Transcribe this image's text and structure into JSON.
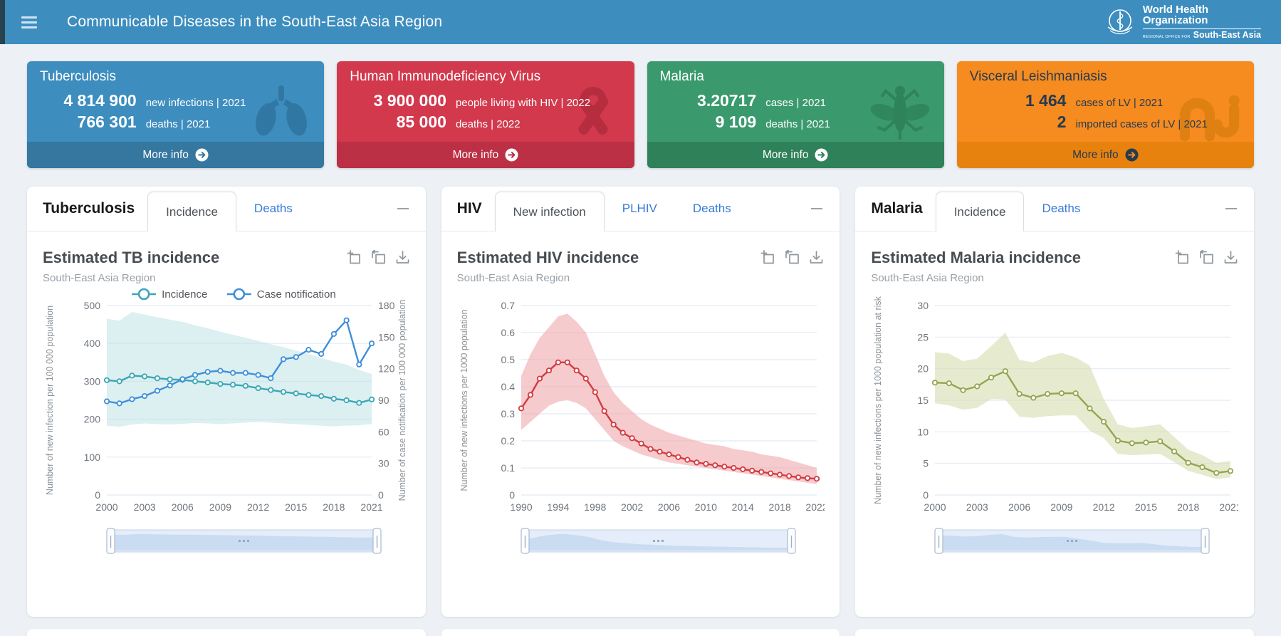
{
  "header": {
    "title": "Communicable Diseases in the South-East Asia Region",
    "logo": {
      "line1": "World Health",
      "line2": "Organization",
      "office": "REGIONAL OFFICE FOR",
      "region": "South-East Asia"
    }
  },
  "cards": [
    {
      "title": "Tuberculosis",
      "stats": [
        {
          "value": "4 814 900",
          "label": "new infections | 2021"
        },
        {
          "value": "766 301",
          "label": "deaths | 2021"
        }
      ],
      "more_label": "More info",
      "icon": "lungs-icon",
      "colors": {
        "bg": "#3d8dbf",
        "footer": "#35779f",
        "text": "#ffffff",
        "icon": "#2d739d",
        "more_circle": "#ffffff",
        "more_arrow": "#35779f"
      }
    },
    {
      "title": "Human Immunodeficiency Virus",
      "stats": [
        {
          "value": "3 900 000",
          "label": "people living with HIV | 2022"
        },
        {
          "value": "85 000",
          "label": "deaths | 2022"
        }
      ],
      "more_label": "More info",
      "icon": "ribbon-icon",
      "colors": {
        "bg": "#d2394d",
        "footer": "#bb3044",
        "text": "#ffffff",
        "icon": "#b32c3e",
        "more_circle": "#ffffff",
        "more_arrow": "#bb3044"
      }
    },
    {
      "title": "Malaria",
      "stats": [
        {
          "value": "3.20717",
          "label": "cases | 2021"
        },
        {
          "value": "9 109",
          "label": "deaths | 2021"
        }
      ],
      "more_label": "More info",
      "icon": "mosquito-icon",
      "colors": {
        "bg": "#3a9a6e",
        "footer": "#2f8159",
        "text": "#ffffff",
        "icon": "#2e7f57",
        "more_circle": "#ffffff",
        "more_arrow": "#2f8159"
      }
    },
    {
      "title": "Visceral Leishmaniasis",
      "stats": [
        {
          "value": "1 464",
          "label": "cases of LV | 2021"
        },
        {
          "value": "2",
          "label": "imported cases of LV | 2021"
        }
      ],
      "more_label": "More info",
      "icon": "sandfly-icon",
      "colors": {
        "bg": "#f68b1f",
        "footer": "#e8820f",
        "text": "#253b50",
        "icon": "#dd7f12",
        "more_circle": "#253b50",
        "more_arrow": "#f68b1f"
      }
    }
  ],
  "panels": [
    {
      "name": "Tuberculosis",
      "tabs": [
        {
          "label": "Incidence",
          "active": true
        },
        {
          "label": "Deaths",
          "active": false
        }
      ],
      "chart": 0
    },
    {
      "name": "HIV",
      "tabs": [
        {
          "label": "New infection",
          "active": true
        },
        {
          "label": "PLHIV",
          "active": false
        },
        {
          "label": "Deaths",
          "active": false
        }
      ],
      "chart": 1
    },
    {
      "name": "Malaria",
      "tabs": [
        {
          "label": "Incidence",
          "active": true
        },
        {
          "label": "Deaths",
          "active": false
        }
      ],
      "chart": 2
    }
  ],
  "toolbar": {
    "icons": [
      "zoom-select-icon",
      "zoom-reset-icon",
      "download-icon"
    ]
  },
  "chart_data": [
    {
      "type": "line",
      "title": "Estimated TB incidence",
      "subtitle": "South-East Asia Region",
      "legend": true,
      "x": [
        2000,
        2001,
        2002,
        2003,
        2004,
        2005,
        2006,
        2007,
        2008,
        2009,
        2010,
        2011,
        2012,
        2013,
        2014,
        2015,
        2016,
        2017,
        2018,
        2019,
        2020,
        2021
      ],
      "x_ticks": [
        2000,
        2003,
        2006,
        2009,
        2012,
        2015,
        2018,
        2021
      ],
      "ylim": [
        0,
        500
      ],
      "y_ticks": [
        0,
        100,
        200,
        300,
        400,
        500
      ],
      "y_tick_labels": [
        "0",
        "100",
        "200",
        "300",
        "400",
        "500"
      ],
      "ylabel": "Number of new infection per 100 000 population",
      "y2lim": [
        0,
        180
      ],
      "y2_ticks": [
        0,
        30,
        60,
        90,
        120,
        150,
        180
      ],
      "y2_tick_labels": [
        "0",
        "30",
        "60",
        "90",
        "120",
        "150",
        "180"
      ],
      "y2label": "Number of case notification per 100 000 population",
      "grid": true,
      "legend_position": "top",
      "series": [
        {
          "name": "Incidence",
          "color": "#3aa7b4",
          "axis": "left",
          "values": [
            303,
            300,
            315,
            313,
            308,
            305,
            304,
            300,
            297,
            293,
            291,
            288,
            282,
            277,
            272,
            268,
            264,
            261,
            254,
            250,
            243,
            252
          ],
          "band": {
            "color": "#bfe2e6",
            "opacity": 0.55,
            "upper": [
              465,
              460,
              483,
              476,
              469,
              463,
              457,
              448,
              440,
              431,
              423,
              415,
              407,
              398,
              390,
              381,
              372,
              362,
              352,
              344,
              330,
              319
            ],
            "lower": [
              183,
              180,
              186,
              189,
              187,
              186,
              188,
              190,
              189,
              187,
              189,
              191,
              193,
              191,
              189,
              187,
              185,
              183,
              181,
              183,
              184,
              187
            ]
          }
        },
        {
          "name": "Case notification",
          "color": "#3e8fd8",
          "axis": "right",
          "values": [
            89,
            87,
            91,
            94,
            99,
            104,
            110,
            114,
            117,
            118,
            116,
            116,
            114,
            111,
            129,
            131,
            138,
            134,
            153,
            166,
            124,
            144
          ]
        }
      ]
    },
    {
      "type": "line",
      "title": "Estimated HIV incidence",
      "subtitle": "South-East Asia Region",
      "legend": false,
      "x": [
        1990,
        1991,
        1992,
        1993,
        1994,
        1995,
        1996,
        1997,
        1998,
        1999,
        2000,
        2001,
        2002,
        2003,
        2004,
        2005,
        2006,
        2007,
        2008,
        2009,
        2010,
        2011,
        2012,
        2013,
        2014,
        2015,
        2016,
        2017,
        2018,
        2019,
        2020,
        2021,
        2022
      ],
      "x_ticks": [
        1990,
        1994,
        1998,
        2002,
        2006,
        2010,
        2014,
        2018,
        2022
      ],
      "ylim": [
        0,
        0.7
      ],
      "y_ticks": [
        0,
        0.1,
        0.2,
        0.3,
        0.4,
        0.5,
        0.6,
        0.7
      ],
      "y_tick_labels": [
        "0",
        "0.1",
        "0.2",
        "0.3",
        "0.4",
        "0.5",
        "0.6",
        "0.7"
      ],
      "ylabel": "Number of new infections per 1000 population",
      "grid": true,
      "series": [
        {
          "name": "HIV incidence",
          "color": "#d23b41",
          "axis": "left",
          "values": [
            0.32,
            0.37,
            0.43,
            0.46,
            0.49,
            0.49,
            0.46,
            0.43,
            0.38,
            0.31,
            0.26,
            0.23,
            0.21,
            0.19,
            0.17,
            0.16,
            0.15,
            0.14,
            0.13,
            0.12,
            0.115,
            0.11,
            0.105,
            0.1,
            0.095,
            0.09,
            0.085,
            0.08,
            0.075,
            0.07,
            0.065,
            0.062,
            0.06
          ],
          "band": {
            "color": "#f0a9ac",
            "opacity": 0.6,
            "upper": [
              0.44,
              0.52,
              0.58,
              0.62,
              0.66,
              0.67,
              0.64,
              0.6,
              0.52,
              0.44,
              0.38,
              0.34,
              0.31,
              0.28,
              0.26,
              0.245,
              0.23,
              0.22,
              0.21,
              0.2,
              0.19,
              0.185,
              0.18,
              0.17,
              0.165,
              0.16,
              0.15,
              0.145,
              0.14,
              0.13,
              0.12,
              0.11,
              0.1
            ],
            "lower": [
              0.24,
              0.27,
              0.3,
              0.33,
              0.345,
              0.35,
              0.34,
              0.32,
              0.28,
              0.24,
              0.2,
              0.18,
              0.165,
              0.15,
              0.14,
              0.13,
              0.12,
              0.115,
              0.11,
              0.105,
              0.1,
              0.095,
              0.09,
              0.085,
              0.08,
              0.075,
              0.07,
              0.065,
              0.06,
              0.055,
              0.05,
              0.045,
              0.04
            ]
          }
        }
      ]
    },
    {
      "type": "line",
      "title": "Estimated Malaria incidence",
      "subtitle": "South-East Asia Region",
      "legend": false,
      "x": [
        2000,
        2001,
        2002,
        2003,
        2004,
        2005,
        2006,
        2007,
        2008,
        2009,
        2010,
        2011,
        2012,
        2013,
        2014,
        2015,
        2016,
        2017,
        2018,
        2019,
        2020,
        2021
      ],
      "x_ticks": [
        2000,
        2003,
        2006,
        2009,
        2012,
        2015,
        2018,
        2021
      ],
      "ylim": [
        0,
        30
      ],
      "y_ticks": [
        0,
        5,
        10,
        15,
        20,
        25,
        30
      ],
      "y_tick_labels": [
        "0",
        "5",
        "10",
        "15",
        "20",
        "25",
        "30"
      ],
      "ylabel": "Number of new infections per 1000 population at risk",
      "grid": true,
      "series": [
        {
          "name": "Malaria incidence",
          "color": "#93a550",
          "axis": "left",
          "values": [
            17.8,
            17.7,
            16.6,
            17.2,
            18.6,
            19.6,
            16.0,
            15.4,
            16.0,
            16.1,
            16.1,
            13.7,
            11.6,
            8.6,
            8.2,
            8.3,
            8.5,
            6.9,
            5.1,
            4.4,
            3.5,
            3.8
          ],
          "band": {
            "color": "#d6ddb1",
            "opacity": 0.6,
            "upper": [
              22.6,
              22.4,
              21.2,
              21.6,
              23.6,
              25.7,
              21.4,
              21.0,
              22.0,
              22.5,
              21.8,
              20.5,
              15.2,
              11.2,
              10.6,
              10.9,
              11.2,
              9.2,
              7.2,
              6.3,
              5.1,
              5.4
            ],
            "lower": [
              14.5,
              14.2,
              13.5,
              13.8,
              15.2,
              15.1,
              12.4,
              12.2,
              12.5,
              12.6,
              12.6,
              10.2,
              9.0,
              6.5,
              6.3,
              6.4,
              6.5,
              5.2,
              3.8,
              3.2,
              2.5,
              2.8
            ]
          }
        }
      ]
    }
  ]
}
